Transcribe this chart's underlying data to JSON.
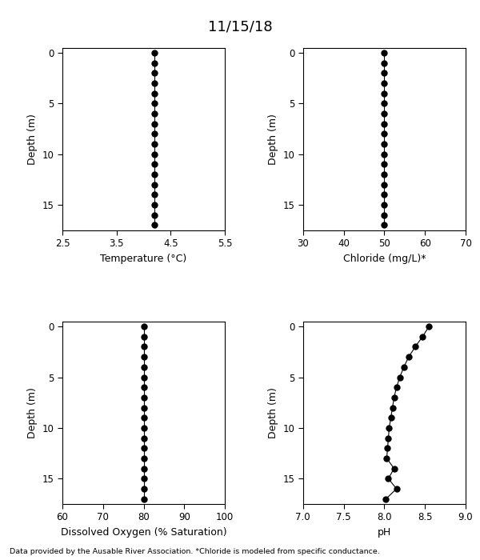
{
  "title": "11/15/18",
  "footer": "Data provided by the Ausable River Association. *Chloride is modeled from specific conductance.",
  "depth": [
    0,
    1,
    2,
    3,
    4,
    5,
    6,
    7,
    8,
    9,
    10,
    11,
    12,
    13,
    14,
    15,
    16,
    17
  ],
  "temperature": [
    4.2,
    4.2,
    4.2,
    4.2,
    4.2,
    4.2,
    4.2,
    4.2,
    4.2,
    4.2,
    4.2,
    4.2,
    4.2,
    4.2,
    4.2,
    4.2,
    4.2,
    4.2
  ],
  "chloride": [
    50,
    50,
    50,
    50,
    50,
    50,
    50,
    50,
    50,
    50,
    50,
    50,
    50,
    50,
    50,
    50,
    50,
    50
  ],
  "do_sat": [
    80,
    80,
    80,
    80,
    80,
    80,
    80,
    80,
    80,
    80,
    80,
    80,
    80,
    80,
    80,
    80,
    80,
    80
  ],
  "ph": [
    8.55,
    8.47,
    8.38,
    8.3,
    8.24,
    8.19,
    8.15,
    8.12,
    8.1,
    8.08,
    8.06,
    8.05,
    8.04,
    8.03,
    8.12,
    8.05,
    8.15,
    8.02
  ],
  "temp_xlim": [
    2.5,
    5.5
  ],
  "temp_xticks": [
    2.5,
    3.5,
    4.5,
    5.5
  ],
  "chloride_xlim": [
    30,
    70
  ],
  "chloride_xticks": [
    30,
    40,
    50,
    60,
    70
  ],
  "do_xlim": [
    60,
    100
  ],
  "do_xticks": [
    60,
    70,
    80,
    90,
    100
  ],
  "ph_xlim": [
    7.0,
    9.0
  ],
  "ph_xticks": [
    7.0,
    7.5,
    8.0,
    8.5,
    9.0
  ],
  "depth_ylim": [
    17.5,
    -0.5
  ],
  "depth_yticks": [
    0,
    5,
    10,
    15
  ],
  "xlabel_temp": "Temperature (°C)",
  "xlabel_chloride": "Chloride (mg/L)*",
  "xlabel_do": "Dissolved Oxygen (% Saturation)",
  "xlabel_ph": "pH",
  "ylabel": "Depth (m)",
  "markersize": 5,
  "linecolor": "black",
  "markercolor": "black",
  "bg_color": "white",
  "title_fontsize": 13,
  "label_fontsize": 9,
  "tick_fontsize": 8.5,
  "footer_fontsize": 6.8
}
